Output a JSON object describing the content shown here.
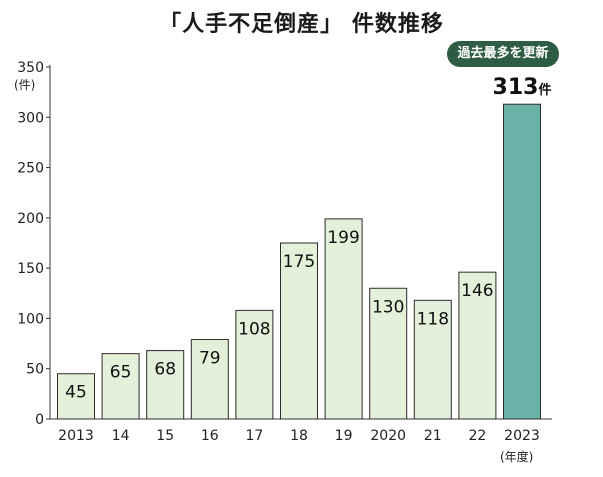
{
  "header": {
    "title": "「人手不足倒産」 件数推移",
    "badge": "過去最多を更新"
  },
  "chart_data": {
    "type": "bar",
    "title": "「人手不足倒産」 件数推移",
    "categories": [
      "2013",
      "14",
      "15",
      "16",
      "17",
      "18",
      "19",
      "2020",
      "21",
      "22",
      "2023"
    ],
    "values": [
      45,
      65,
      68,
      79,
      108,
      175,
      199,
      130,
      118,
      146,
      313
    ],
    "data_labels": [
      "45",
      "65",
      "68",
      "79",
      "108",
      "175",
      "199",
      "130",
      "118",
      "146",
      "313"
    ],
    "highlight_unit": "件",
    "ylabel": "(件)",
    "xlabel": "(年度)",
    "ylim": [
      0,
      350
    ],
    "yticks": [
      0,
      50,
      100,
      150,
      200,
      250,
      300,
      350
    ],
    "grid": false,
    "colors": {
      "bar": "#e3f0da",
      "bar_border": "#2b2b2b",
      "highlight_bar": "#6ab1a7",
      "badge": "#2f5d43"
    }
  }
}
